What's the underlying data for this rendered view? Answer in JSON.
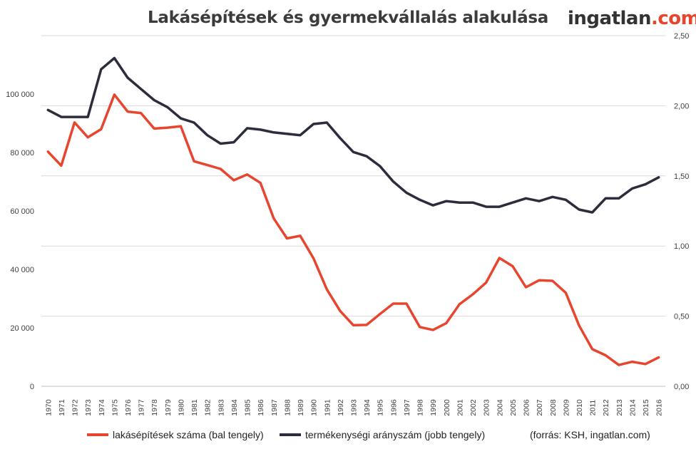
{
  "title": "Lakásépítések és gyermekvállalás alakulása",
  "logo": {
    "part1": "ingatlan",
    "part2": ".com"
  },
  "source": "(forrás: KSH, ingatlan.com)",
  "colors": {
    "housing": "#e8452f",
    "fertility": "#2b2d3c",
    "grid": "#d9d9d9"
  },
  "chart_data": {
    "type": "line",
    "x": [
      "1970",
      "1971",
      "1972",
      "1973",
      "1974",
      "1975",
      "1976",
      "1977",
      "1978",
      "1979",
      "1980",
      "1981",
      "1982",
      "1983",
      "1984",
      "1985",
      "1986",
      "1987",
      "1988",
      "1989",
      "1990",
      "1991",
      "1992",
      "1993",
      "1994",
      "1995",
      "1996",
      "1997",
      "1998",
      "1999",
      "2000",
      "2001",
      "2002",
      "2003",
      "2004",
      "2005",
      "2006",
      "2007",
      "2008",
      "2009",
      "2010",
      "2011",
      "2012",
      "2013",
      "2014",
      "2015",
      "2016"
    ],
    "left_axis": {
      "ylim": [
        0,
        120000
      ],
      "ticks": [
        0,
        20000,
        40000,
        60000,
        80000,
        100000
      ],
      "tick_labels": [
        "0",
        "20 000",
        "40 000",
        "60 000",
        "80 000",
        "100 000"
      ]
    },
    "right_axis": {
      "ylim": [
        0,
        2.5
      ],
      "ticks": [
        0,
        0.5,
        1.0,
        1.5,
        2.0,
        2.5
      ],
      "tick_labels": [
        "0,00",
        "0,50",
        "1,00",
        "1,50",
        "2,00",
        "2,50"
      ]
    },
    "grid": true,
    "legend_position": "bottom",
    "series": [
      {
        "name": "lakásépítések száma (bal tengely)",
        "axis": "left",
        "values": [
          80300,
          75500,
          90300,
          85200,
          88000,
          99800,
          94000,
          93500,
          88200,
          88500,
          89000,
          77000,
          75700,
          74400,
          70500,
          72500,
          69600,
          57500,
          50600,
          51500,
          43800,
          33200,
          25800,
          20900,
          21000,
          24700,
          28300,
          28300,
          20300,
          19300,
          21600,
          28100,
          31500,
          35500,
          43900,
          41100,
          33900,
          36300,
          36100,
          31990,
          20800,
          12700,
          10600,
          7300,
          8400,
          7600,
          9900
        ]
      },
      {
        "name": "termékenységi arányszám (jobb tengely)",
        "axis": "right",
        "values": [
          1.97,
          1.92,
          1.92,
          1.92,
          2.26,
          2.34,
          2.2,
          2.12,
          2.04,
          1.99,
          1.91,
          1.88,
          1.79,
          1.73,
          1.74,
          1.84,
          1.83,
          1.81,
          1.8,
          1.79,
          1.87,
          1.88,
          1.77,
          1.67,
          1.64,
          1.57,
          1.46,
          1.38,
          1.33,
          1.29,
          1.32,
          1.31,
          1.31,
          1.28,
          1.28,
          1.31,
          1.34,
          1.32,
          1.35,
          1.33,
          1.26,
          1.24,
          1.34,
          1.34,
          1.41,
          1.44,
          1.49
        ]
      }
    ]
  }
}
